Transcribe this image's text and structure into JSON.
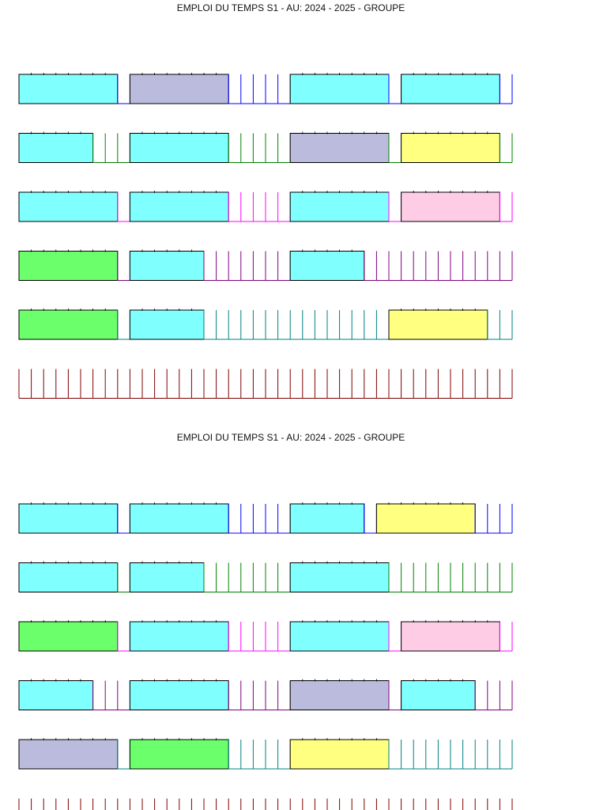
{
  "timetables": [
    {
      "title": "EMPLOI DU TEMPS S1 - AU: 2024 - 2025 - GROUPE",
      "rows": [
        {
          "line_color": "#0000ff",
          "cells": [
            {
              "kind": "course",
              "span": 8,
              "fill": "#80ffff"
            },
            {
              "kind": "empty",
              "span": 1
            },
            {
              "kind": "course",
              "span": 8,
              "fill": "#bbbbdd"
            },
            {
              "kind": "empty",
              "span": 5
            },
            {
              "kind": "course",
              "span": 8,
              "fill": "#80ffff"
            },
            {
              "kind": "empty",
              "span": 1
            },
            {
              "kind": "course",
              "span": 8,
              "fill": "#80ffff"
            },
            {
              "kind": "empty",
              "span": 1
            }
          ]
        },
        {
          "line_color": "#008000",
          "cells": [
            {
              "kind": "course",
              "span": 6,
              "fill": "#80ffff"
            },
            {
              "kind": "empty",
              "span": 3
            },
            {
              "kind": "course",
              "span": 8,
              "fill": "#80ffff"
            },
            {
              "kind": "empty",
              "span": 5
            },
            {
              "kind": "course",
              "span": 8,
              "fill": "#bbbbdd"
            },
            {
              "kind": "empty",
              "span": 1
            },
            {
              "kind": "course",
              "span": 8,
              "fill": "#ffff80"
            },
            {
              "kind": "empty",
              "span": 1
            }
          ]
        },
        {
          "line_color": "#ff00ff",
          "cells": [
            {
              "kind": "course",
              "span": 8,
              "fill": "#80ffff"
            },
            {
              "kind": "empty",
              "span": 1
            },
            {
              "kind": "course",
              "span": 8,
              "fill": "#80ffff"
            },
            {
              "kind": "empty",
              "span": 5
            },
            {
              "kind": "course",
              "span": 8,
              "fill": "#80ffff"
            },
            {
              "kind": "empty",
              "span": 1
            },
            {
              "kind": "course",
              "span": 8,
              "fill": "#ffcce6"
            },
            {
              "kind": "empty",
              "span": 1
            }
          ]
        },
        {
          "line_color": "#800080",
          "cells": [
            {
              "kind": "course",
              "span": 8,
              "fill": "#6bff6b"
            },
            {
              "kind": "empty",
              "span": 1
            },
            {
              "kind": "course",
              "span": 6,
              "fill": "#80ffff"
            },
            {
              "kind": "empty",
              "span": 7
            },
            {
              "kind": "course",
              "span": 6,
              "fill": "#80ffff"
            },
            {
              "kind": "empty",
              "span": 12
            }
          ]
        },
        {
          "line_color": "#008080",
          "cells": [
            {
              "kind": "course",
              "span": 8,
              "fill": "#6bff6b"
            },
            {
              "kind": "empty",
              "span": 1
            },
            {
              "kind": "course",
              "span": 6,
              "fill": "#80ffff"
            },
            {
              "kind": "empty",
              "span": 15
            },
            {
              "kind": "course",
              "span": 8,
              "fill": "#ffff80"
            },
            {
              "kind": "empty",
              "span": 2
            }
          ]
        },
        {
          "line_color": "#800000",
          "cells": [
            {
              "kind": "empty",
              "span": 40
            }
          ]
        }
      ]
    },
    {
      "title": "EMPLOI DU TEMPS S1 - AU: 2024 - 2025 - GROUPE",
      "rows": [
        {
          "line_color": "#0000ff",
          "cells": [
            {
              "kind": "course",
              "span": 8,
              "fill": "#80ffff"
            },
            {
              "kind": "empty",
              "span": 1
            },
            {
              "kind": "course",
              "span": 8,
              "fill": "#80ffff"
            },
            {
              "kind": "empty",
              "span": 5
            },
            {
              "kind": "course",
              "span": 6,
              "fill": "#80ffff"
            },
            {
              "kind": "empty",
              "span": 1
            },
            {
              "kind": "course",
              "span": 8,
              "fill": "#ffff80"
            },
            {
              "kind": "empty",
              "span": 3
            }
          ]
        },
        {
          "line_color": "#008000",
          "cells": [
            {
              "kind": "course",
              "span": 8,
              "fill": "#80ffff"
            },
            {
              "kind": "empty",
              "span": 1
            },
            {
              "kind": "course",
              "span": 6,
              "fill": "#80ffff"
            },
            {
              "kind": "empty",
              "span": 7
            },
            {
              "kind": "course",
              "span": 8,
              "fill": "#80ffff"
            },
            {
              "kind": "empty",
              "span": 10
            }
          ]
        },
        {
          "line_color": "#ff00ff",
          "cells": [
            {
              "kind": "course",
              "span": 8,
              "fill": "#6bff6b"
            },
            {
              "kind": "empty",
              "span": 1
            },
            {
              "kind": "course",
              "span": 8,
              "fill": "#80ffff"
            },
            {
              "kind": "empty",
              "span": 5
            },
            {
              "kind": "course",
              "span": 8,
              "fill": "#80ffff"
            },
            {
              "kind": "empty",
              "span": 1
            },
            {
              "kind": "course",
              "span": 8,
              "fill": "#ffcce6"
            },
            {
              "kind": "empty",
              "span": 1
            }
          ]
        },
        {
          "line_color": "#800080",
          "cells": [
            {
              "kind": "course",
              "span": 6,
              "fill": "#80ffff"
            },
            {
              "kind": "empty",
              "span": 3
            },
            {
              "kind": "course",
              "span": 8,
              "fill": "#80ffff"
            },
            {
              "kind": "empty",
              "span": 5
            },
            {
              "kind": "course",
              "span": 8,
              "fill": "#bbbbdd"
            },
            {
              "kind": "empty",
              "span": 1
            },
            {
              "kind": "course",
              "span": 6,
              "fill": "#80ffff"
            },
            {
              "kind": "empty",
              "span": 3
            }
          ]
        },
        {
          "line_color": "#008080",
          "cells": [
            {
              "kind": "course",
              "span": 8,
              "fill": "#bbbbdd"
            },
            {
              "kind": "empty",
              "span": 1
            },
            {
              "kind": "course",
              "span": 8,
              "fill": "#6bff6b"
            },
            {
              "kind": "empty",
              "span": 5
            },
            {
              "kind": "course",
              "span": 8,
              "fill": "#ffff80"
            },
            {
              "kind": "empty",
              "span": 10
            }
          ]
        },
        {
          "line_color": "#800000",
          "cells": [
            {
              "kind": "empty",
              "span": 40
            }
          ]
        }
      ]
    }
  ]
}
